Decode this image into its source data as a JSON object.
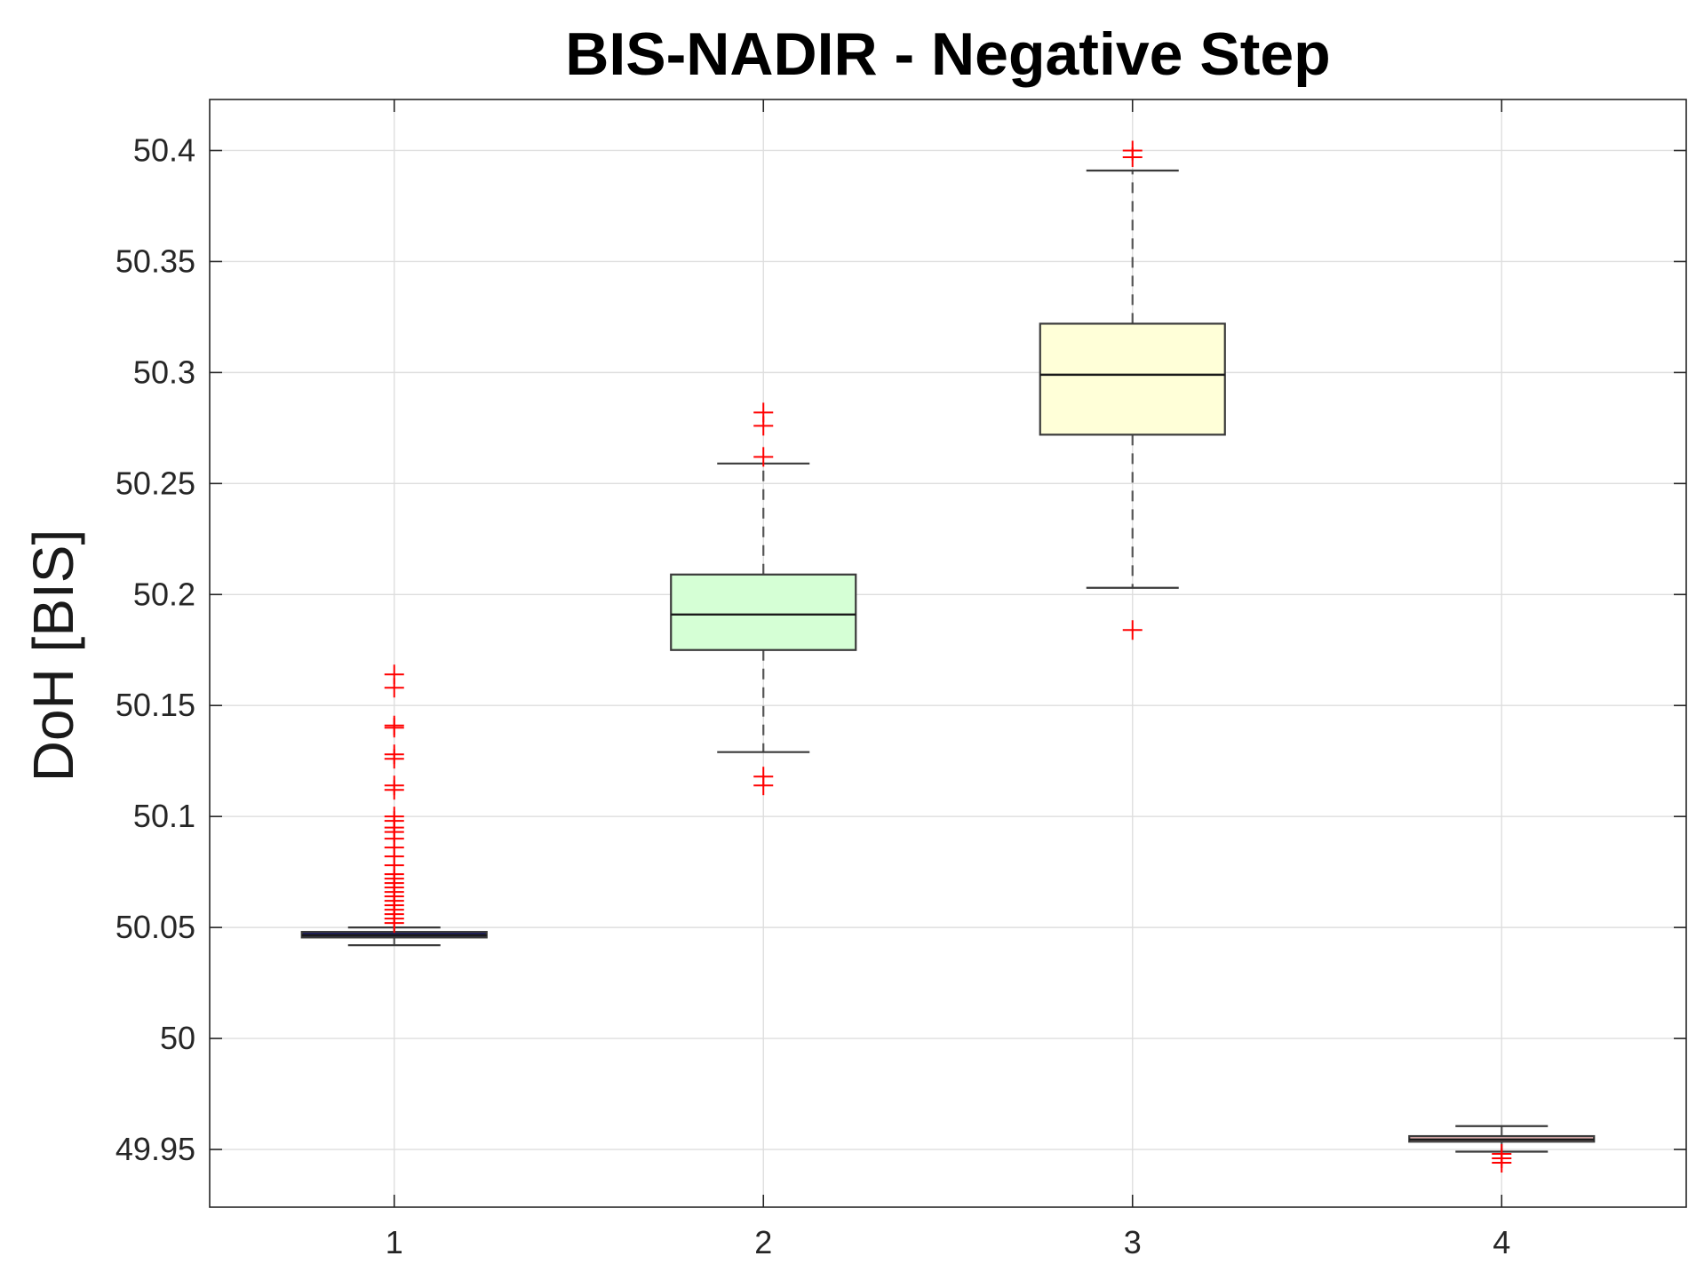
{
  "chart_data": {
    "type": "box",
    "title": "BIS-NADIR - Negative Step",
    "xlabel": "",
    "ylabel": "DoH [BIS]",
    "categories": [
      "1",
      "2",
      "3",
      "4"
    ],
    "x_ticks": [
      "1",
      "2",
      "3",
      "4"
    ],
    "y_ticks": [
      "49.95",
      "50",
      "50.05",
      "50.1",
      "50.15",
      "50.2",
      "50.25",
      "50.3",
      "50.35",
      "50.4"
    ],
    "ylim": [
      49.924,
      50.423
    ],
    "xlim": [
      0.5,
      4.5
    ],
    "grid": true,
    "boxes": [
      {
        "category": "1",
        "whisker_low": 50.042,
        "q1": 50.0455,
        "median": 50.0465,
        "q3": 50.048,
        "whisker_high": 50.05,
        "fill": "#1a1a66",
        "outliers": [
          50.052,
          50.054,
          50.056,
          50.058,
          50.06,
          50.062,
          50.064,
          50.066,
          50.068,
          50.07,
          50.072,
          50.074,
          50.078,
          50.082,
          50.086,
          50.09,
          50.093,
          50.095,
          50.098,
          50.1,
          50.112,
          50.114,
          50.126,
          50.128,
          50.14,
          50.141,
          50.158,
          50.164
        ]
      },
      {
        "category": "2",
        "whisker_low": 50.129,
        "q1": 50.175,
        "median": 50.191,
        "q3": 50.209,
        "whisker_high": 50.259,
        "fill": "#d5ffd5",
        "outliers": [
          50.114,
          50.118,
          50.262,
          50.276,
          50.282
        ]
      },
      {
        "category": "3",
        "whisker_low": 50.203,
        "q1": 50.272,
        "median": 50.299,
        "q3": 50.322,
        "whisker_high": 50.391,
        "fill": "#ffffd8",
        "outliers": [
          50.184,
          50.397,
          50.4
        ]
      },
      {
        "category": "4",
        "whisker_low": 49.949,
        "q1": 49.9535,
        "median": 49.9545,
        "q3": 49.956,
        "whisker_high": 49.9605,
        "fill": "#e8b4b4",
        "outliers": [
          49.944,
          49.946,
          49.948
        ]
      }
    ],
    "colors": {
      "box_edge": "#3a3a3a",
      "whisker": "#555555",
      "median": "#1a1a1a",
      "outlier": "#ff0000",
      "grid": "#dedede",
      "axes": "#262626"
    }
  }
}
